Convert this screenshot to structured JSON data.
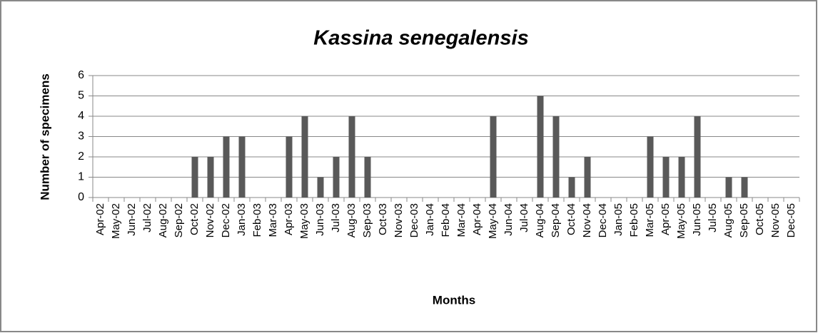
{
  "chart_data": {
    "type": "bar",
    "title": "Kassina senegalensis",
    "x_label": "Months",
    "y_label": "Number of specimens",
    "categories": [
      "Apr-02",
      "May-02",
      "Jun-02",
      "Jul-02",
      "Aug-02",
      "Sep-02",
      "Oct-02",
      "Nov-02",
      "Dec-02",
      "Jan-03",
      "Feb-03",
      "Mar-03",
      "Apr-03",
      "May-03",
      "Jun-03",
      "Jul-03",
      "Aug-03",
      "Sep-03",
      "Oct-03",
      "Nov-03",
      "Dec-03",
      "Jan-04",
      "Feb-04",
      "Mar-04",
      "Apr-04",
      "May-04",
      "Jun-04",
      "Jul-04",
      "Aug-04",
      "Sep-04",
      "Oct-04",
      "Nov-04",
      "Dec-04",
      "Jan-05",
      "Feb-05",
      "Mar-05",
      "Apr-05",
      "May-05",
      "Jun-05",
      "Jul-05",
      "Aug-05",
      "Sep-05",
      "Oct-05",
      "Nov-05",
      "Dec-05"
    ],
    "values": [
      0,
      0,
      0,
      0,
      0,
      0,
      2,
      2,
      3,
      3,
      0,
      0,
      3,
      4,
      1,
      2,
      4,
      2,
      0,
      0,
      0,
      0,
      0,
      0,
      0,
      4,
      0,
      0,
      5,
      4,
      1,
      2,
      0,
      0,
      0,
      3,
      2,
      2,
      4,
      0,
      1,
      1,
      0,
      0,
      0
    ],
    "color": "#595959",
    "ylim": [
      0,
      6
    ],
    "yticks": [
      0,
      1,
      2,
      3,
      4,
      5,
      6
    ],
    "grid": true
  }
}
